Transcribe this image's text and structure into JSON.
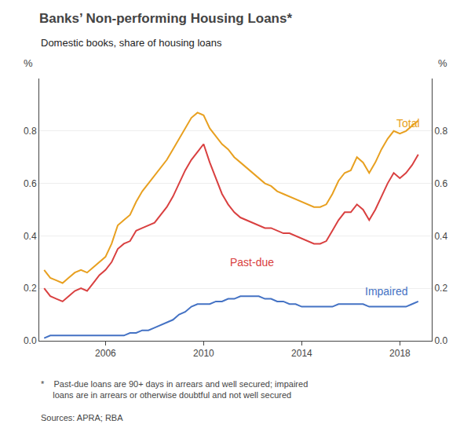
{
  "chart_data": {
    "type": "line",
    "title": "Banks’ Non-performing Housing Loans*",
    "subtitle": "Domestic books, share of housing loans",
    "ylabel": "%",
    "y2label": "%",
    "footnote": "*    Past-due loans are 90+ days in arrears and well secured; impaired\n     loans are in arrears or otherwise doubtful and not well secured",
    "sources": "Sources: APRA; RBA",
    "x": [
      2003.5,
      2003.75,
      2004.0,
      2004.25,
      2004.5,
      2004.75,
      2005.0,
      2005.25,
      2005.5,
      2005.75,
      2006.0,
      2006.25,
      2006.5,
      2006.75,
      2007.0,
      2007.25,
      2007.5,
      2007.75,
      2008.0,
      2008.25,
      2008.5,
      2008.75,
      2009.0,
      2009.25,
      2009.5,
      2009.75,
      2010.0,
      2010.25,
      2010.5,
      2010.75,
      2011.0,
      2011.25,
      2011.5,
      2011.75,
      2012.0,
      2012.25,
      2012.5,
      2012.75,
      2013.0,
      2013.25,
      2013.5,
      2013.75,
      2014.0,
      2014.25,
      2014.5,
      2014.75,
      2015.0,
      2015.25,
      2015.5,
      2015.75,
      2016.0,
      2016.25,
      2016.5,
      2016.75,
      2017.0,
      2017.25,
      2017.5,
      2017.75,
      2018.0,
      2018.25,
      2018.5,
      2018.75
    ],
    "series": [
      {
        "name": "Total",
        "color": "#e8a020",
        "values": [
          0.27,
          0.24,
          0.23,
          0.22,
          0.24,
          0.26,
          0.27,
          0.26,
          0.28,
          0.3,
          0.32,
          0.37,
          0.44,
          0.46,
          0.48,
          0.53,
          0.57,
          0.6,
          0.63,
          0.66,
          0.69,
          0.73,
          0.77,
          0.81,
          0.85,
          0.87,
          0.86,
          0.81,
          0.78,
          0.75,
          0.73,
          0.7,
          0.68,
          0.66,
          0.64,
          0.62,
          0.6,
          0.59,
          0.57,
          0.56,
          0.55,
          0.54,
          0.53,
          0.52,
          0.51,
          0.51,
          0.52,
          0.56,
          0.61,
          0.64,
          0.65,
          0.7,
          0.68,
          0.64,
          0.68,
          0.73,
          0.77,
          0.8,
          0.79,
          0.8,
          0.82,
          0.84
        ]
      },
      {
        "name": "Past-due",
        "color": "#d94040",
        "values": [
          0.2,
          0.17,
          0.16,
          0.15,
          0.17,
          0.19,
          0.2,
          0.19,
          0.22,
          0.25,
          0.27,
          0.3,
          0.35,
          0.37,
          0.38,
          0.42,
          0.43,
          0.44,
          0.45,
          0.48,
          0.51,
          0.55,
          0.6,
          0.65,
          0.69,
          0.72,
          0.75,
          0.68,
          0.62,
          0.56,
          0.52,
          0.49,
          0.47,
          0.46,
          0.45,
          0.44,
          0.43,
          0.43,
          0.42,
          0.41,
          0.41,
          0.4,
          0.39,
          0.38,
          0.37,
          0.37,
          0.38,
          0.42,
          0.46,
          0.49,
          0.49,
          0.52,
          0.5,
          0.46,
          0.5,
          0.55,
          0.6,
          0.64,
          0.62,
          0.64,
          0.67,
          0.71
        ]
      },
      {
        "name": "Impaired",
        "color": "#4472c4",
        "values": [
          0.01,
          0.02,
          0.02,
          0.02,
          0.02,
          0.02,
          0.02,
          0.02,
          0.02,
          0.02,
          0.02,
          0.02,
          0.02,
          0.02,
          0.03,
          0.03,
          0.04,
          0.04,
          0.05,
          0.06,
          0.07,
          0.08,
          0.1,
          0.11,
          0.13,
          0.14,
          0.14,
          0.14,
          0.15,
          0.15,
          0.16,
          0.16,
          0.17,
          0.17,
          0.17,
          0.17,
          0.16,
          0.16,
          0.15,
          0.15,
          0.14,
          0.14,
          0.13,
          0.13,
          0.13,
          0.13,
          0.13,
          0.13,
          0.14,
          0.14,
          0.14,
          0.14,
          0.14,
          0.13,
          0.13,
          0.13,
          0.13,
          0.13,
          0.13,
          0.13,
          0.14,
          0.15
        ]
      }
    ],
    "annotations": [
      {
        "text": "Total",
        "x": 2017.8,
        "y": 0.83,
        "color": "#e8a020"
      },
      {
        "text": "Past-due",
        "x": 2011.0,
        "y": 0.3,
        "color": "#d94040"
      },
      {
        "text": "Impaired",
        "x": 2016.5,
        "y": 0.19,
        "color": "#4472c4"
      }
    ],
    "xlim": [
      2003.3,
      2019.3
    ],
    "xticks": [
      2006,
      2010,
      2014,
      2018
    ],
    "ylim": [
      0.0,
      1.0
    ],
    "yticks": [
      {
        "value": 0.0,
        "label": "0.0"
      },
      {
        "value": 0.2,
        "label": "0.2"
      },
      {
        "value": 0.4,
        "label": "0.4"
      },
      {
        "value": 0.6,
        "label": "0.6"
      },
      {
        "value": 0.8,
        "label": "0.8"
      }
    ],
    "y2lim": [
      0.0,
      1.0
    ],
    "y2ticks": [
      {
        "value": 0.0,
        "label": "0.0"
      },
      {
        "value": 0.2,
        "label": "0.2"
      },
      {
        "value": 0.4,
        "label": "0.4"
      },
      {
        "value": 0.6,
        "label": "0.6"
      },
      {
        "value": 0.8,
        "label": "0.8"
      }
    ],
    "grid": "y"
  }
}
